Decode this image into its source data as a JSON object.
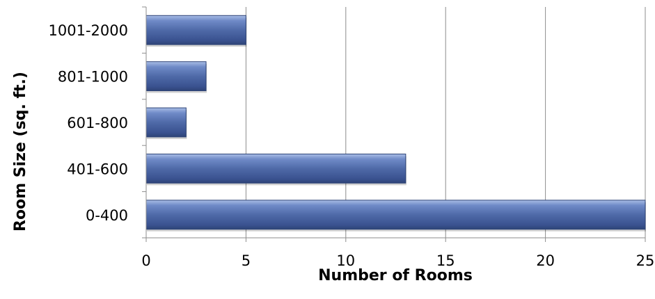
{
  "chart_data": {
    "type": "bar",
    "orientation": "horizontal",
    "categories": [
      "0-400",
      "401-600",
      "601-800",
      "801-1000",
      "1001-2000"
    ],
    "values": [
      25,
      13,
      2,
      3,
      5
    ],
    "xlabel": "Number of Rooms",
    "ylabel": "Room Size (sq. ft.)",
    "xlim": [
      0,
      25
    ],
    "xticks": [
      0,
      5,
      10,
      15,
      20,
      25
    ],
    "grid": "vertical",
    "legend": "none",
    "colors": {
      "bar": "#4f6aa8",
      "bar_dark": "#2e4477",
      "bar_light": "#a9bde6",
      "grid": "#8c8c8c"
    }
  }
}
